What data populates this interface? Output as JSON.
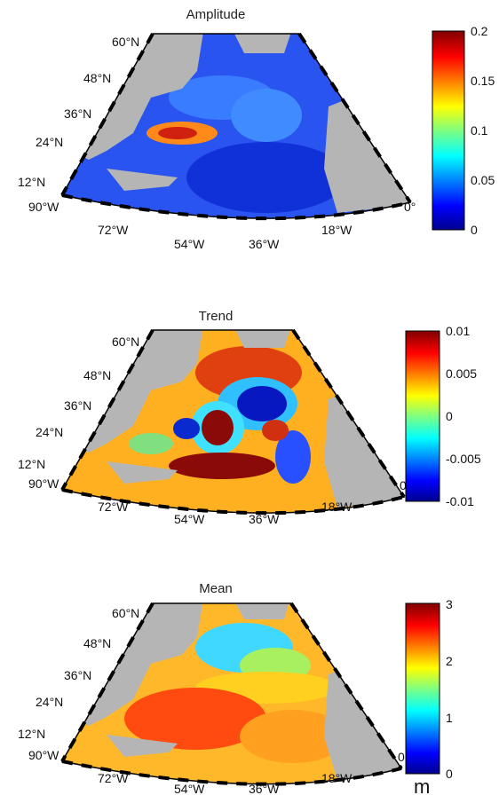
{
  "panels": [
    {
      "title": "Amplitude",
      "colorbar": {
        "ticks": [
          "0.2",
          "0.15",
          "0.1",
          "0.05",
          "0"
        ],
        "min": 0,
        "max": 0.2
      },
      "scheme": "amplitude"
    },
    {
      "title": "Trend",
      "colorbar": {
        "ticks": [
          "0.01",
          "0.005",
          "0",
          "-0.005",
          "-0.01"
        ],
        "min": -0.01,
        "max": 0.01
      },
      "scheme": "trend"
    },
    {
      "title": "Mean",
      "colorbar": {
        "ticks": [
          "3",
          "2",
          "1",
          "0"
        ],
        "min": 0,
        "max": 3
      },
      "scheme": "mean"
    }
  ],
  "lat_labels": [
    "60°N",
    "48°N",
    "36°N",
    "24°N",
    "12°N"
  ],
  "lon_labels": [
    "90°W",
    "72°W",
    "54°W",
    "36°W",
    "18°W",
    "0°"
  ],
  "unit_label": "m",
  "colors": {
    "land": "#b5b5b5",
    "frame": "#000000"
  }
}
